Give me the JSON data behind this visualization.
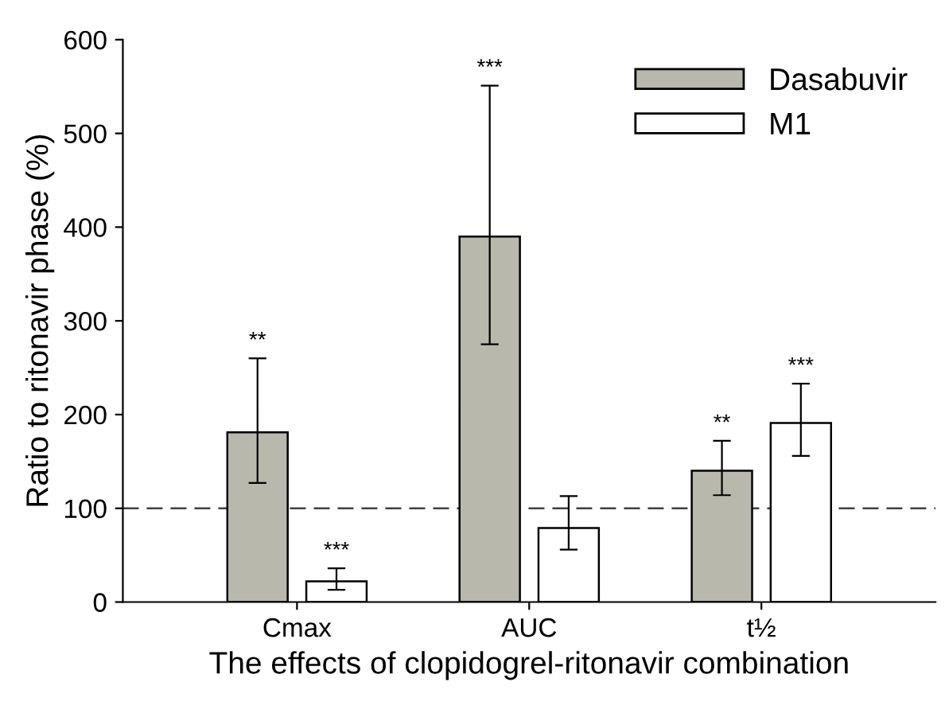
{
  "chart_data": {
    "type": "bar",
    "xlabel": "The effects of clopidogrel-ritonavir combination",
    "ylabel": "Ratio to ritonavir phase (%)",
    "categories": [
      "Cmax",
      "AUC",
      "t½"
    ],
    "series": [
      {
        "name": "Dasabuvir",
        "color": "#b8b8ac",
        "values": [
          181,
          390,
          140
        ],
        "value_labels": [
          null,
          null,
          "**"
        ],
        "errors": [
          [
            127,
            260
          ],
          [
            275,
            551
          ],
          [
            114,
            172
          ]
        ]
      },
      {
        "name": "M1",
        "color": "#ffffff",
        "values": [
          22,
          79,
          191
        ],
        "value_labels": [
          "***",
          null,
          "***"
        ],
        "errors": [
          [
            13,
            36
          ],
          [
            56,
            113
          ],
          [
            156,
            233
          ]
        ]
      }
    ],
    "ylim": [
      0,
      600
    ],
    "yticks": [
      0,
      100,
      200,
      300,
      400,
      500,
      600
    ],
    "grid": false,
    "legend": "top right",
    "ref_lines": [
      {
        "axis": "y",
        "value": 100,
        "color": "#404040",
        "line_style": "dashed"
      }
    ],
    "annotations": [
      "**",
      "***"
    ]
  }
}
